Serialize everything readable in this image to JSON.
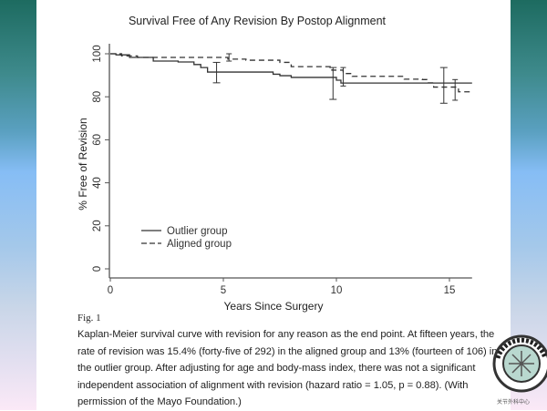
{
  "slide": {
    "fig_label": "Fig. 1",
    "caption": "Kaplan-Meier survival curve with revision for any reason as the end point. At fifteen years, the rate of revision was 15.4% (forty-five of 292) in the aligned group and 13% (fourteen of 106) in the outlier group. After adjusting for age and body-mass index, there was not a significant independent association of alignment with revision (hazard ratio = 1.05, p = 0.88). (With permission of the Mayo Foundation.)",
    "logo_icon": "society-seal-icon",
    "logo_caption": "关节外科中心",
    "colors": {
      "side_top": "#1d6b60",
      "side_mid": "#86bdf5",
      "side_bottom": "#fbe9f7"
    }
  },
  "chart_data": {
    "type": "line",
    "title": "Survival Free of  Any Revision By Postop Alignment",
    "xlabel": "Years Since Surgery",
    "ylabel": "% Free of Revision",
    "xlim": [
      0,
      16
    ],
    "ylim": [
      0,
      100
    ],
    "xticks": [
      0,
      5,
      10,
      15
    ],
    "yticks": [
      0,
      20,
      40,
      60,
      80,
      100
    ],
    "grid": false,
    "legend": {
      "position": "lower-left",
      "entries": [
        "Outlier group",
        "Aligned group"
      ]
    },
    "series": [
      {
        "name": "Outlier group",
        "style": "solid",
        "steps": [
          [
            0,
            100
          ],
          [
            0.25,
            99.5
          ],
          [
            0.85,
            98.3
          ],
          [
            1.9,
            96.6
          ],
          [
            3.0,
            96.2
          ],
          [
            3.7,
            95
          ],
          [
            4.0,
            93.6
          ],
          [
            4.3,
            91.5
          ],
          [
            7.0,
            91.5
          ],
          [
            7.2,
            90.5
          ],
          [
            7.5,
            89.8
          ],
          [
            8.0,
            89
          ],
          [
            10.0,
            87.7
          ],
          [
            10.2,
            86.4
          ],
          [
            16,
            86.4
          ]
        ],
        "error_bars": [
          {
            "x": 4.7,
            "low": 86.5,
            "high": 96
          },
          {
            "x": 9.85,
            "low": 78.8,
            "high": 93.6
          },
          {
            "x": 14.75,
            "low": 77,
            "high": 93.6
          }
        ]
      },
      {
        "name": "Aligned group",
        "style": "dashed",
        "steps": [
          [
            0,
            100
          ],
          [
            0.5,
            99
          ],
          [
            1.2,
            98.3
          ],
          [
            4.8,
            98.3
          ],
          [
            5.2,
            97.5
          ],
          [
            6.0,
            97
          ],
          [
            7.5,
            96
          ],
          [
            8.0,
            94
          ],
          [
            9.8,
            92.4
          ],
          [
            10.3,
            90.8
          ],
          [
            10.7,
            89.5
          ],
          [
            12.8,
            89.5
          ],
          [
            13.0,
            88.2
          ],
          [
            13.8,
            88
          ],
          [
            14.0,
            86.5
          ],
          [
            14.3,
            84.5
          ],
          [
            15.2,
            84.5
          ],
          [
            15.4,
            82.3
          ],
          [
            16,
            82.3
          ]
        ],
        "error_bars": [
          {
            "x": 5.25,
            "low": 96.6,
            "high": 100
          },
          {
            "x": 10.3,
            "low": 85,
            "high": 93.6
          },
          {
            "x": 15.25,
            "low": 78.4,
            "high": 88
          }
        ]
      }
    ]
  }
}
